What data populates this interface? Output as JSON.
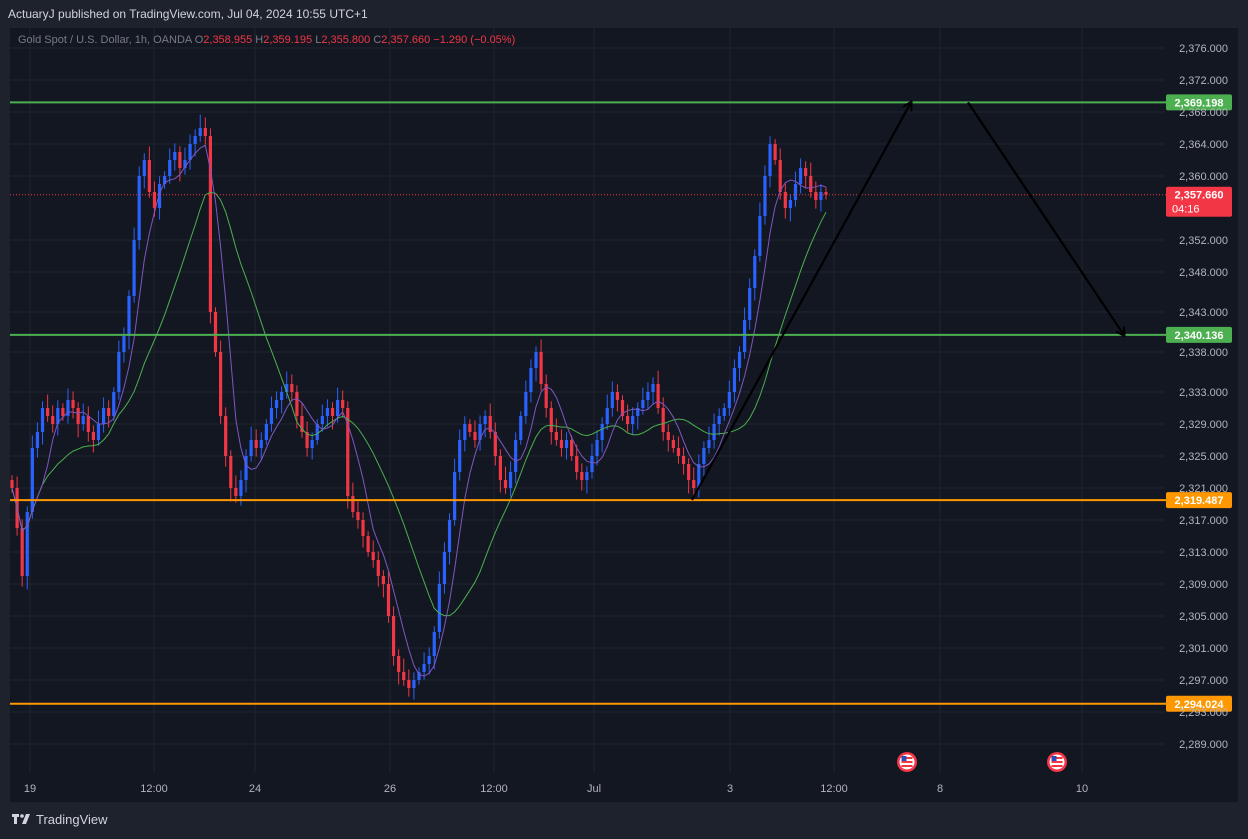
{
  "header": {
    "published_line": "ActuaryJ published on TradingView.com, Jul 04, 2024 10:55 UTC+1"
  },
  "legend": {
    "symbol": "Gold Spot / U.S. Dollar, 1h, OANDA",
    "o_label": "O",
    "o": "2,358.955",
    "h_label": "H",
    "h": "2,359.195",
    "l_label": "L",
    "l": "2,355.800",
    "c_label": "C",
    "c": "2,357.660",
    "change": "−1.290 (−0.05%)"
  },
  "footer": {
    "brand": "TradingView"
  },
  "colors": {
    "up": "#2962ff",
    "down": "#f23645",
    "fast_ma": "#7e57c2",
    "slow_ma": "#4caf50",
    "green_level": "#4caf50",
    "orange_level": "#ff9800",
    "background": "#131722"
  },
  "chart_data": {
    "type": "candlestick",
    "ylim": [
      2285.5,
      2378.5
    ],
    "y_ticks": [
      "2,376.000",
      "2,372.000",
      "2,368.000",
      "2,364.000",
      "2,360.000",
      "2,352.000",
      "2,348.000",
      "2,343.000",
      "2,338.000",
      "2,333.000",
      "2,329.000",
      "2,325.000",
      "2,321.000",
      "2,317.000",
      "2,313.000",
      "2,309.000",
      "2,305.000",
      "2,301.000",
      "2,297.000",
      "2,293.000",
      "2,289.000"
    ],
    "x_ticks": [
      "19",
      "12:00",
      "24",
      "26",
      "12:00",
      "Jul",
      "3",
      "12:00",
      "8",
      "10"
    ],
    "levels": [
      {
        "value": 2369.198,
        "label": "2,369.198",
        "color": "#4caf50"
      },
      {
        "value": 2340.136,
        "label": "2,340.136",
        "color": "#4caf50"
      },
      {
        "value": 2319.487,
        "label": "2,319.487",
        "color": "#ff9800"
      },
      {
        "value": 2294.024,
        "label": "2,294.024",
        "color": "#ff9800"
      }
    ],
    "last_price": {
      "value": 2357.66,
      "label": "2,357.660",
      "countdown": "04:16"
    },
    "close_path": [
      2321,
      2316,
      2310,
      2318,
      2326,
      2328,
      2331,
      2330,
      2329,
      2331,
      2330,
      2332,
      2331,
      2329,
      2330,
      2328,
      2327,
      2329,
      2331,
      2330,
      2333,
      2338,
      2340,
      2345,
      2352,
      2360,
      2362,
      2358,
      2356,
      2359,
      2360,
      2362,
      2363,
      2361,
      2362,
      2364,
      2365,
      2366,
      2365,
      2343,
      2338,
      2330,
      2325,
      2321,
      2320,
      2322,
      2325,
      2327,
      2326,
      2327,
      2329,
      2331,
      2332,
      2333,
      2334,
      2333,
      2330,
      2328,
      2326,
      2327,
      2329,
      2330,
      2331,
      2330,
      2332,
      2331,
      2320,
      2318,
      2317,
      2315,
      2313,
      2312,
      2310,
      2309,
      2305,
      2300,
      2298,
      2297,
      2296,
      2297,
      2298,
      2299,
      2300,
      2303,
      2309,
      2313,
      2317,
      2323,
      2327,
      2329,
      2328,
      2327,
      2329,
      2330,
      2328,
      2325,
      2322,
      2321,
      2323,
      2327,
      2330,
      2333,
      2336,
      2338,
      2334,
      2331,
      2328,
      2327,
      2326,
      2327,
      2325,
      2323,
      2322,
      2323,
      2325,
      2327,
      2329,
      2331,
      2333,
      2332,
      2330,
      2329,
      2330,
      2331,
      2332,
      2333,
      2334,
      2331,
      2328,
      2327,
      2326,
      2325,
      2324,
      2322,
      2321,
      2324,
      2326,
      2327,
      2329,
      2330,
      2331,
      2333,
      2336,
      2338,
      2342,
      2346,
      2350,
      2355,
      2360,
      2364,
      2362,
      2358,
      2356,
      2357,
      2359,
      2361,
      2360,
      2358,
      2357,
      2358,
      2357.66
    ],
    "annotations": [
      {
        "type": "arrow",
        "from": {
          "x_label": "3",
          "y": 2319.5
        },
        "to": {
          "x_label": "8",
          "y": 2369.2
        }
      },
      {
        "type": "arrow",
        "from": {
          "x_label": "8",
          "y": 2369.2
        },
        "to": {
          "x_label": "10",
          "y": 2340.1
        }
      }
    ],
    "event_markers": [
      "us-flag-icon",
      "us-flag-icon"
    ]
  }
}
